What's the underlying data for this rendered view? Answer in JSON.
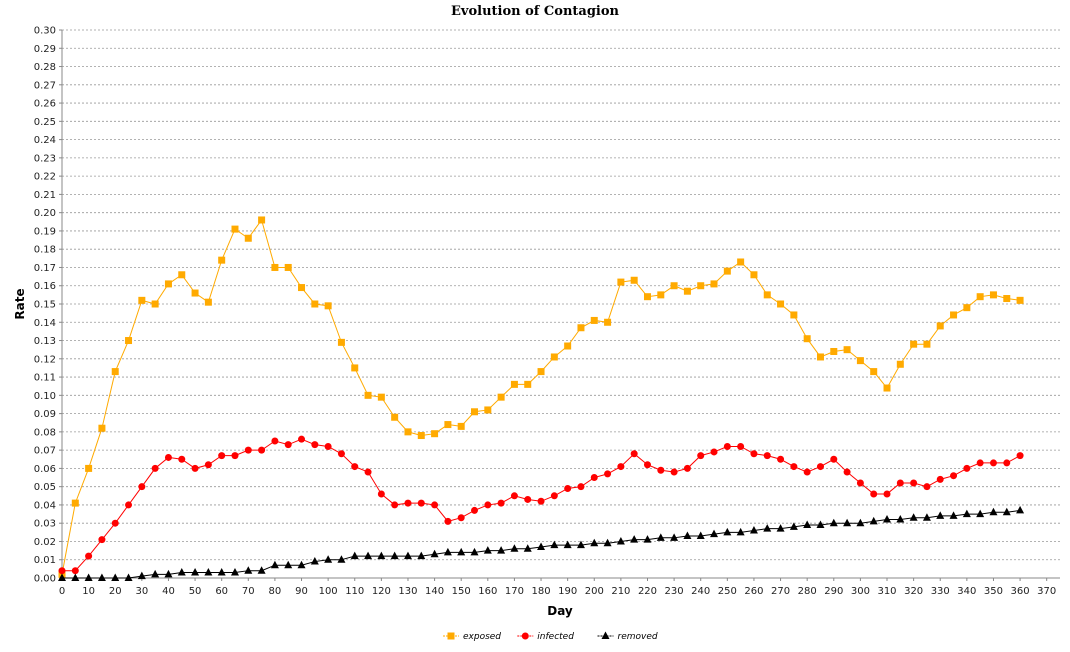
{
  "chart_data": {
    "type": "line",
    "title": "Evolution of Contagion",
    "xlabel": "Day",
    "ylabel": "Rate",
    "xlim": [
      0,
      375
    ],
    "ylim": [
      0,
      0.3
    ],
    "x_ticks": [
      0,
      10,
      20,
      30,
      40,
      50,
      60,
      70,
      80,
      90,
      100,
      110,
      120,
      130,
      140,
      150,
      160,
      170,
      180,
      190,
      200,
      210,
      220,
      230,
      240,
      250,
      260,
      270,
      280,
      290,
      300,
      310,
      320,
      330,
      340,
      350,
      360,
      370
    ],
    "y_ticks": [
      "0.00",
      "0.01",
      "0.02",
      "0.03",
      "0.04",
      "0.05",
      "0.06",
      "0.07",
      "0.08",
      "0.09",
      "0.10",
      "0.11",
      "0.12",
      "0.13",
      "0.14",
      "0.15",
      "0.16",
      "0.17",
      "0.18",
      "0.19",
      "0.20",
      "0.21",
      "0.22",
      "0.23",
      "0.24",
      "0.25",
      "0.26",
      "0.27",
      "0.28",
      "0.29",
      "0.30"
    ],
    "grid": "horizontal dashed",
    "legend_position": "bottom-center",
    "x": [
      0,
      5,
      10,
      15,
      20,
      25,
      30,
      35,
      40,
      45,
      50,
      55,
      60,
      65,
      70,
      75,
      80,
      85,
      90,
      95,
      100,
      105,
      110,
      115,
      120,
      125,
      130,
      135,
      140,
      145,
      150,
      155,
      160,
      165,
      170,
      175,
      180,
      185,
      190,
      195,
      200,
      205,
      210,
      215,
      220,
      225,
      230,
      235,
      240,
      245,
      250,
      255,
      260,
      265,
      270,
      275,
      280,
      285,
      290,
      295,
      300,
      305,
      310,
      315,
      320,
      325,
      330,
      335,
      340,
      345,
      350,
      355,
      360
    ],
    "series": [
      {
        "name": "exposed",
        "color": "#FFAA00",
        "marker": "square",
        "values": [
          0.002,
          0.041,
          0.06,
          0.082,
          0.113,
          0.13,
          0.152,
          0.15,
          0.161,
          0.166,
          0.156,
          0.151,
          0.174,
          0.191,
          0.186,
          0.196,
          0.17,
          0.17,
          0.159,
          0.15,
          0.149,
          0.129,
          0.115,
          0.1,
          0.099,
          0.088,
          0.08,
          0.078,
          0.079,
          0.084,
          0.083,
          0.091,
          0.092,
          0.099,
          0.106,
          0.106,
          0.113,
          0.121,
          0.127,
          0.137,
          0.141,
          0.14,
          0.162,
          0.163,
          0.154,
          0.155,
          0.16,
          0.157,
          0.16,
          0.161,
          0.168,
          0.173,
          0.166,
          0.155,
          0.15,
          0.144,
          0.131,
          0.121,
          0.124,
          0.125,
          0.119,
          0.113,
          0.104,
          0.117,
          0.128,
          0.128,
          0.138,
          0.144,
          0.148,
          0.154,
          0.155,
          0.153,
          0.152
        ]
      },
      {
        "name": "infected",
        "color": "#FF0000",
        "marker": "circle",
        "values": [
          0.004,
          0.004,
          0.012,
          0.021,
          0.03,
          0.04,
          0.05,
          0.06,
          0.066,
          0.065,
          0.06,
          0.062,
          0.067,
          0.067,
          0.07,
          0.07,
          0.075,
          0.073,
          0.076,
          0.073,
          0.072,
          0.068,
          0.061,
          0.058,
          0.046,
          0.04,
          0.041,
          0.041,
          0.04,
          0.031,
          0.033,
          0.037,
          0.04,
          0.041,
          0.045,
          0.043,
          0.042,
          0.045,
          0.049,
          0.05,
          0.055,
          0.057,
          0.061,
          0.068,
          0.062,
          0.059,
          0.058,
          0.06,
          0.067,
          0.069,
          0.072,
          0.072,
          0.068,
          0.067,
          0.065,
          0.061,
          0.058,
          0.061,
          0.065,
          0.058,
          0.052,
          0.046,
          0.046,
          0.052,
          0.052,
          0.05,
          0.054,
          0.056,
          0.06,
          0.063,
          0.063,
          0.063,
          0.067
        ]
      },
      {
        "name": "removed",
        "color": "#000000",
        "marker": "triangle",
        "values": [
          0.0,
          0.0,
          0.0,
          0.0,
          0.0,
          0.0,
          0.001,
          0.002,
          0.002,
          0.003,
          0.003,
          0.003,
          0.003,
          0.003,
          0.004,
          0.004,
          0.007,
          0.007,
          0.007,
          0.009,
          0.01,
          0.01,
          0.012,
          0.012,
          0.012,
          0.012,
          0.012,
          0.012,
          0.013,
          0.014,
          0.014,
          0.014,
          0.015,
          0.015,
          0.016,
          0.016,
          0.017,
          0.018,
          0.018,
          0.018,
          0.019,
          0.019,
          0.02,
          0.021,
          0.021,
          0.022,
          0.022,
          0.023,
          0.023,
          0.024,
          0.025,
          0.025,
          0.026,
          0.027,
          0.027,
          0.028,
          0.029,
          0.029,
          0.03,
          0.03,
          0.03,
          0.031,
          0.032,
          0.032,
          0.033,
          0.033,
          0.034,
          0.034,
          0.035,
          0.035,
          0.036,
          0.036,
          0.037
        ]
      }
    ]
  }
}
